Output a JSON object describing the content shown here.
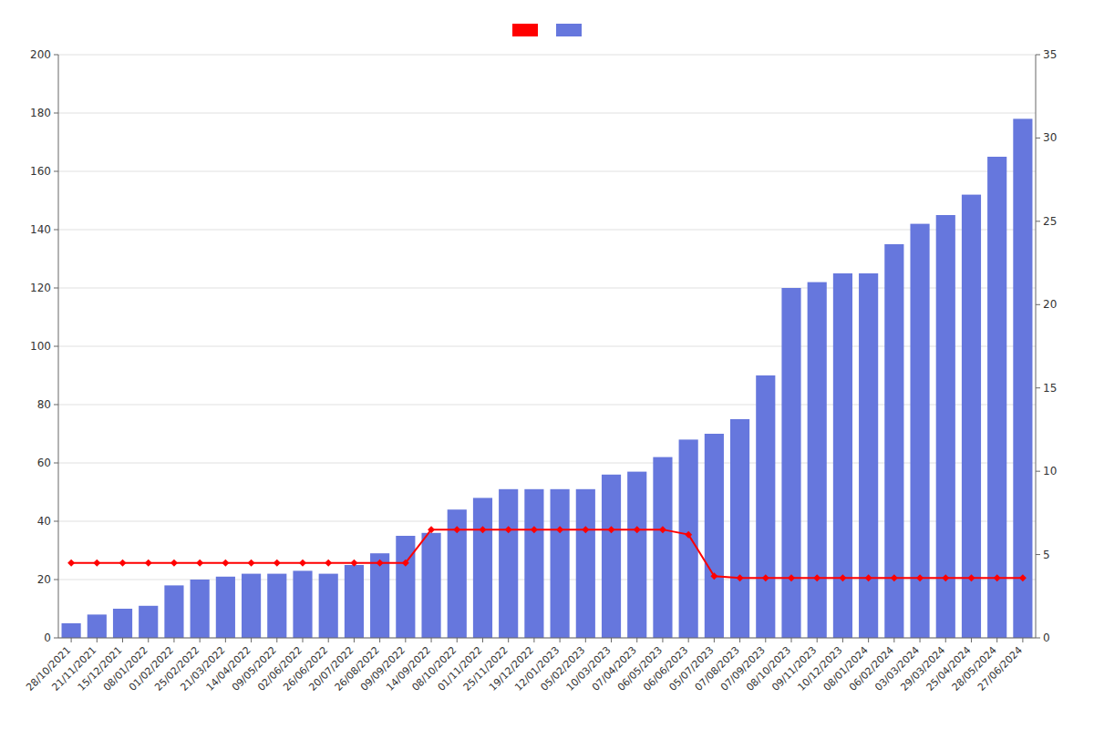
{
  "chart_data": {
    "type": "bar",
    "categories": [
      "28/10/2021",
      "21/11/2021",
      "15/12/2021",
      "08/01/2022",
      "01/02/2022",
      "25/02/2022",
      "21/03/2022",
      "14/04/2022",
      "09/05/2022",
      "02/06/2022",
      "26/06/2022",
      "20/07/2022",
      "26/08/2022",
      "09/09/2022",
      "14/09/2022",
      "08/10/2022",
      "01/11/2022",
      "25/11/2022",
      "19/12/2022",
      "12/01/2023",
      "05/02/2023",
      "10/03/2023",
      "07/04/2023",
      "06/05/2023",
      "06/06/2023",
      "05/07/2023",
      "07/08/2023",
      "07/09/2023",
      "08/10/2023",
      "09/11/2023",
      "10/12/2023",
      "08/01/2024",
      "06/02/2024",
      "03/03/2024",
      "29/03/2024",
      "25/04/2024",
      "28/05/2024",
      "27/06/2024"
    ],
    "series": [
      {
        "type": "line",
        "axis": "y2",
        "color": "#ff0000",
        "marker": "diamond",
        "values": [
          4.5,
          4.5,
          4.5,
          4.5,
          4.5,
          4.5,
          4.5,
          4.5,
          4.5,
          4.5,
          4.5,
          4.5,
          4.5,
          4.5,
          6.5,
          6.5,
          6.5,
          6.5,
          6.5,
          6.5,
          6.5,
          6.5,
          6.5,
          6.5,
          6.2,
          3.7,
          3.6,
          3.6,
          3.6,
          3.6,
          3.6,
          3.6,
          3.6,
          3.6,
          3.6,
          3.6,
          3.6,
          3.6
        ]
      },
      {
        "type": "bar",
        "color": "#6677dd",
        "values": [
          5,
          8,
          10,
          11,
          18,
          20,
          21,
          22,
          22,
          23,
          22,
          25,
          29,
          35,
          36,
          44,
          48,
          51,
          51,
          51,
          51,
          56,
          57,
          62,
          68,
          70,
          75,
          90,
          120,
          122,
          125,
          125,
          135,
          142,
          145,
          152,
          165,
          178
        ]
      }
    ],
    "ylim": [
      0,
      200
    ],
    "yticks": [
      0,
      20,
      40,
      60,
      80,
      100,
      120,
      140,
      160,
      180,
      200
    ],
    "y2lim": [
      0,
      35
    ],
    "y2ticks": [
      0,
      5,
      10,
      15,
      20,
      25,
      30,
      35
    ],
    "grid": true,
    "legend": "top"
  }
}
